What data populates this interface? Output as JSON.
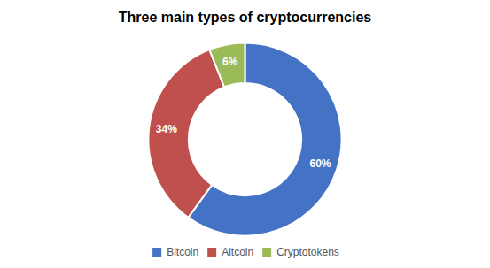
{
  "chart_data": {
    "type": "pie",
    "title": "Three main types of cryptocurrencies",
    "categories": [
      "Bitcoin",
      "Altcoin",
      "Cryptotokens"
    ],
    "values": [
      60,
      34,
      6
    ],
    "value_labels": [
      "60%",
      "34%",
      "6%"
    ],
    "colors": [
      "#4472C4",
      "#C0504D",
      "#9BBB59"
    ],
    "data_labels": true,
    "legend": "bottom"
  }
}
